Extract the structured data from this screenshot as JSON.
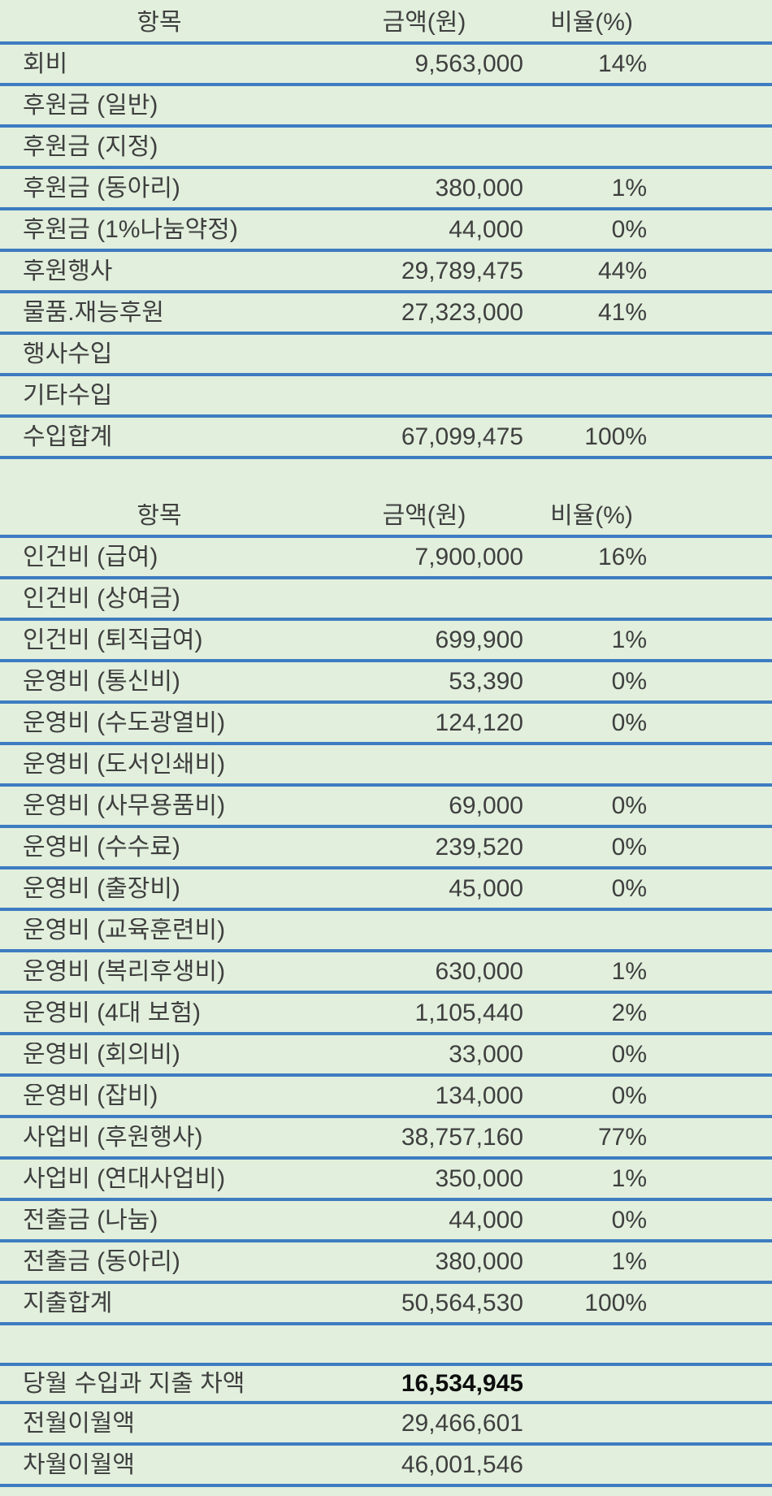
{
  "colors": {
    "background": "#e1efdc",
    "border": "#3e7cc1",
    "text": "#3f3f3f",
    "emphasis": "#0d0d0d"
  },
  "table": {
    "income": {
      "header": {
        "item": "항목",
        "amount": "금액(원)",
        "ratio": "비율(%)"
      },
      "rows": [
        {
          "item": "회비",
          "amount": "9,563,000",
          "ratio": "14%"
        },
        {
          "item": "후원금 (일반)",
          "amount": "",
          "ratio": ""
        },
        {
          "item": "후원금 (지정)",
          "amount": "",
          "ratio": ""
        },
        {
          "item": "후원금 (동아리)",
          "amount": "380,000",
          "ratio": "1%"
        },
        {
          "item": "후원금 (1%나눔약정)",
          "amount": "44,000",
          "ratio": "0%"
        },
        {
          "item": "후원행사",
          "amount": "29,789,475",
          "ratio": "44%"
        },
        {
          "item": "물품.재능후원",
          "amount": "27,323,000",
          "ratio": "41%"
        },
        {
          "item": "행사수입",
          "amount": "",
          "ratio": ""
        },
        {
          "item": "기타수입",
          "amount": "",
          "ratio": ""
        },
        {
          "item": "수입합계",
          "amount": "67,099,475",
          "ratio": "100%"
        }
      ]
    },
    "expense": {
      "header": {
        "item": "항목",
        "amount": "금액(원)",
        "ratio": "비율(%)"
      },
      "rows": [
        {
          "item": "인건비 (급여)",
          "amount": "7,900,000",
          "ratio": "16%"
        },
        {
          "item": "인건비 (상여금)",
          "amount": "",
          "ratio": ""
        },
        {
          "item": "인건비 (퇴직급여)",
          "amount": "699,900",
          "ratio": "1%"
        },
        {
          "item": "운영비 (통신비)",
          "amount": "53,390",
          "ratio": "0%"
        },
        {
          "item": "운영비 (수도광열비)",
          "amount": "124,120",
          "ratio": "0%"
        },
        {
          "item": "운영비 (도서인쇄비)",
          "amount": "",
          "ratio": ""
        },
        {
          "item": "운영비 (사무용품비)",
          "amount": "69,000",
          "ratio": "0%"
        },
        {
          "item": "운영비 (수수료)",
          "amount": "239,520",
          "ratio": "0%"
        },
        {
          "item": "운영비 (출장비)",
          "amount": "45,000",
          "ratio": "0%"
        },
        {
          "item": "운영비 (교육훈련비)",
          "amount": "",
          "ratio": ""
        },
        {
          "item": "운영비 (복리후생비)",
          "amount": "630,000",
          "ratio": "1%"
        },
        {
          "item": "운영비 (4대 보험)",
          "amount": "1,105,440",
          "ratio": "2%"
        },
        {
          "item": "운영비 (회의비)",
          "amount": "33,000",
          "ratio": "0%"
        },
        {
          "item": "운영비 (잡비)",
          "amount": "134,000",
          "ratio": "0%"
        },
        {
          "item": "사업비 (후원행사)",
          "amount": "38,757,160",
          "ratio": "77%"
        },
        {
          "item": "사업비 (연대사업비)",
          "amount": "350,000",
          "ratio": "1%"
        },
        {
          "item": "전출금 (나눔)",
          "amount": "44,000",
          "ratio": "0%"
        },
        {
          "item": "전출금 (동아리)",
          "amount": "380,000",
          "ratio": "1%"
        },
        {
          "item": "지출합계",
          "amount": "50,564,530",
          "ratio": "100%"
        }
      ]
    },
    "summary": {
      "rows": [
        {
          "item": "당월 수입과 지출 차액",
          "amount": "16,534,945",
          "ratio": "",
          "emphasis": true
        },
        {
          "item": "전월이월액",
          "amount": "29,466,601",
          "ratio": ""
        },
        {
          "item": "차월이월액",
          "amount": "46,001,546",
          "ratio": ""
        }
      ]
    }
  }
}
